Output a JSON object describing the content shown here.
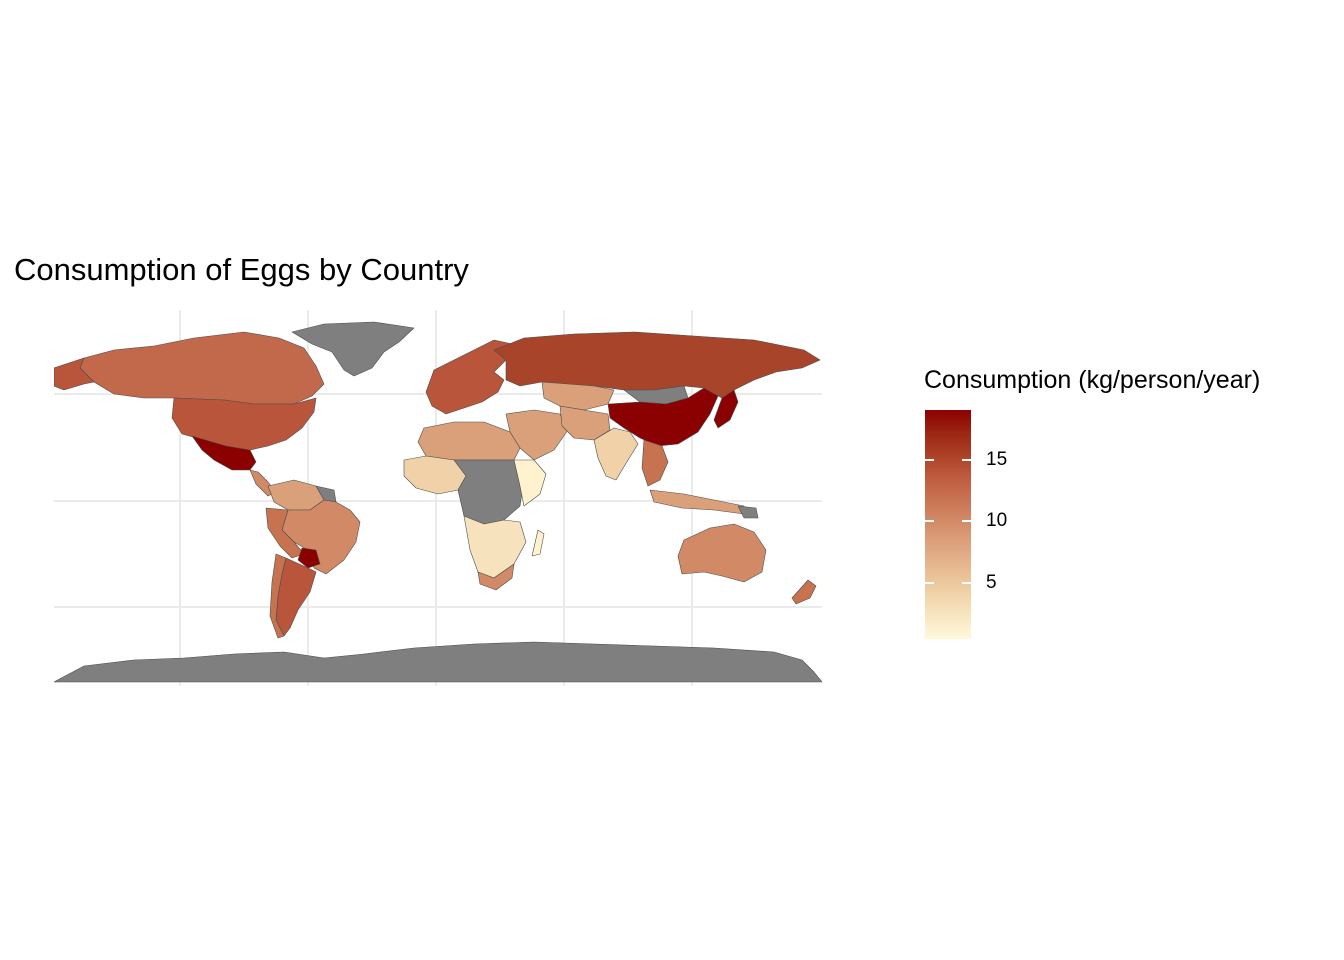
{
  "title": "Consumption of Eggs by Country",
  "legend": {
    "title": "Consumption (kg/person/year)",
    "ticks": [
      {
        "label": "15",
        "value": 15
      },
      {
        "label": "10",
        "value": 10
      },
      {
        "label": "5",
        "value": 5
      }
    ],
    "range": [
      0.5,
      19
    ],
    "palette": {
      "low": "#fff9db",
      "high": "#8b0000",
      "no_data": "#7f7f7f"
    }
  },
  "map": {
    "type": "choropleth",
    "projection": "equirectangular",
    "grid": "on",
    "regions": [
      {
        "name": "Canada",
        "level": "high-medium"
      },
      {
        "name": "United States",
        "level": "high-medium"
      },
      {
        "name": "Mexico",
        "level": "very-high"
      },
      {
        "name": "Brazil",
        "level": "medium"
      },
      {
        "name": "Argentina",
        "level": "high-medium"
      },
      {
        "name": "Paraguay",
        "level": "very-high"
      },
      {
        "name": "Russia",
        "level": "high"
      },
      {
        "name": "China",
        "level": "very-high"
      },
      {
        "name": "Japan",
        "level": "very-high"
      },
      {
        "name": "India",
        "level": "low"
      },
      {
        "name": "Australia",
        "level": "medium"
      },
      {
        "name": "Greenland",
        "level": "no-data"
      },
      {
        "name": "Antarctica",
        "level": "no-data"
      },
      {
        "name": "Mongolia",
        "level": "no-data"
      }
    ]
  }
}
